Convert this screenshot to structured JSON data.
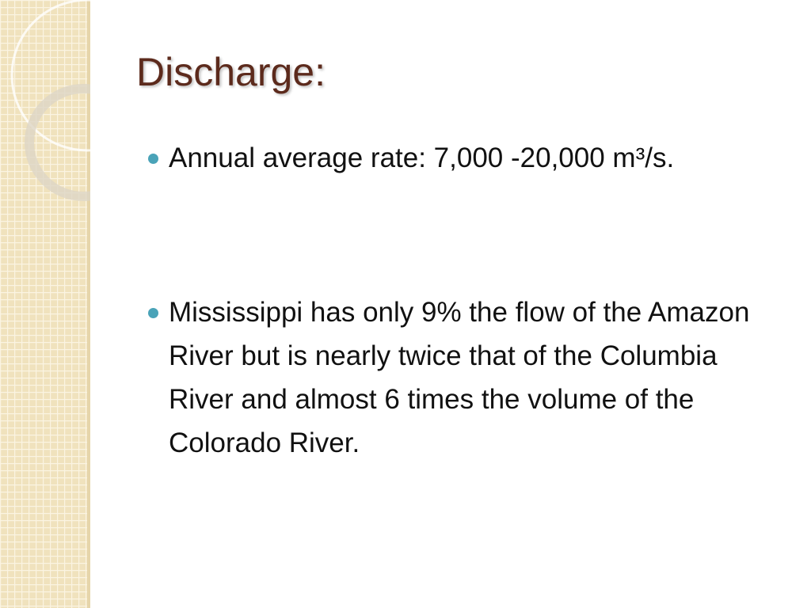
{
  "slide": {
    "title": "Discharge:",
    "bullets": [
      "Annual average rate: 7,000 -20,000 m³/s.",
      "Mississippi has only 9% the flow of the Amazon River but is nearly twice that of the Columbia River and almost 6 times the volume of the Colorado River."
    ]
  }
}
